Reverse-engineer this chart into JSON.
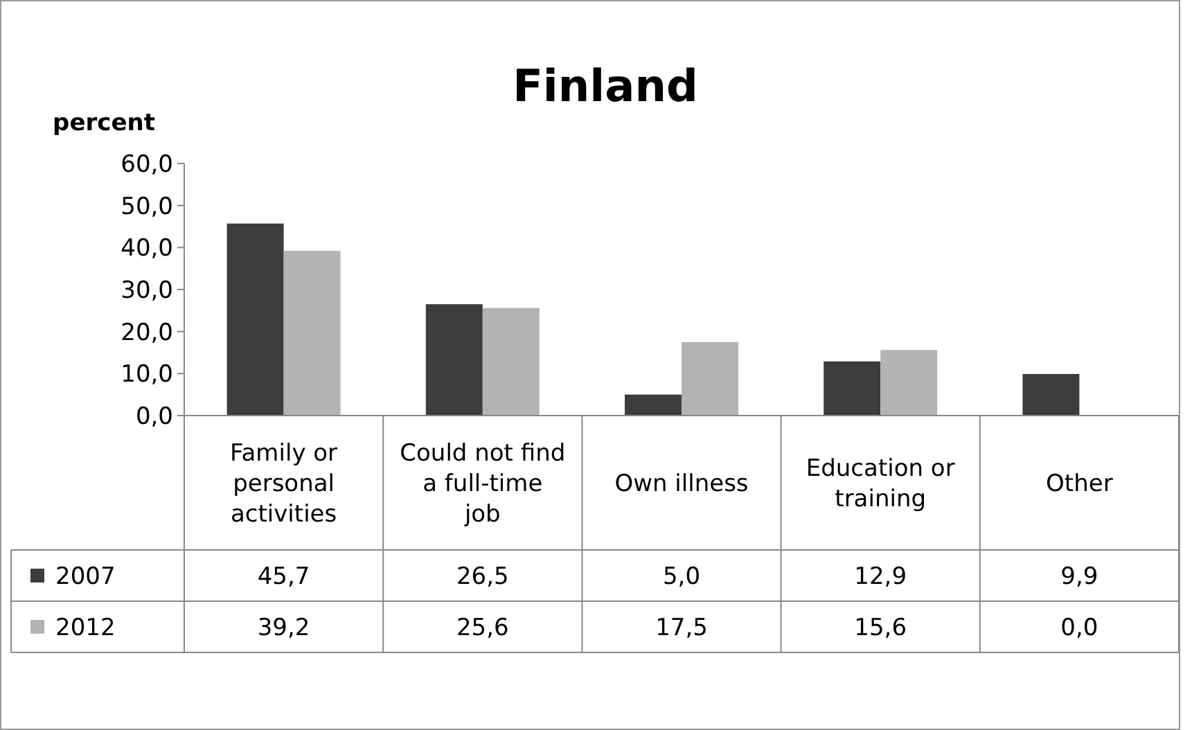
{
  "chart_data": {
    "type": "bar",
    "title": "Finland",
    "ylabel": "percent",
    "categories": [
      "Family or personal activities",
      "Could not find a full-time job",
      "Own illness",
      "Education or training",
      "Other"
    ],
    "series": [
      {
        "name": "2007",
        "color": "#3d3d3d",
        "values": [
          45.7,
          26.5,
          5.0,
          12.9,
          9.9
        ],
        "value_labels": [
          "45,7",
          "26,5",
          "5,0",
          "12,9",
          "9,9"
        ]
      },
      {
        "name": "2012",
        "color": "#b3b3b3",
        "values": [
          39.2,
          25.6,
          17.5,
          15.6,
          0.0
        ],
        "value_labels": [
          "39,2",
          "25,6",
          "17,5",
          "15,6",
          "0,0"
        ]
      }
    ],
    "ylim": [
      0,
      60
    ],
    "yticks": [
      {
        "value": 0,
        "label": "0,0"
      },
      {
        "value": 10,
        "label": "10,0"
      },
      {
        "value": 20,
        "label": "20,0"
      },
      {
        "value": 30,
        "label": "30,0"
      },
      {
        "value": 40,
        "label": "40,0"
      },
      {
        "value": 50,
        "label": "50,0"
      },
      {
        "value": 60,
        "label": "60,0"
      }
    ],
    "grid": false,
    "legend": "bottom left"
  }
}
